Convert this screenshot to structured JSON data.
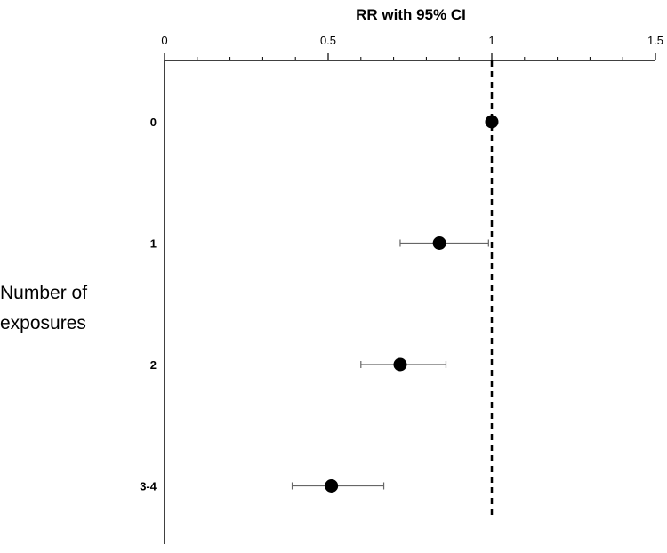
{
  "chart_data": {
    "type": "scatter",
    "title": "RR with 95% CI",
    "xlabel": "",
    "ylabel_lines": [
      "Number of",
      "exposures"
    ],
    "xlim": [
      0,
      1.5
    ],
    "x_ticks": [
      0,
      0.5,
      1,
      1.5
    ],
    "x_tick_labels": [
      "0",
      "0.5",
      "1",
      "1.5"
    ],
    "x_axis_position": "top",
    "grid": false,
    "reference_line": {
      "x": 1,
      "style": "dashed"
    },
    "categories": [
      "0",
      "1",
      "2",
      "3-4"
    ],
    "series": [
      {
        "values": [
          1.0,
          0.84,
          0.72,
          0.51
        ],
        "ci_lower": [
          null,
          0.72,
          0.6,
          0.39
        ],
        "ci_upper": [
          null,
          0.99,
          0.86,
          0.67
        ]
      }
    ],
    "colors": {
      "marker": "#000000",
      "errorbar": "#666666",
      "axis": "#000000",
      "reference": "#000000"
    }
  }
}
